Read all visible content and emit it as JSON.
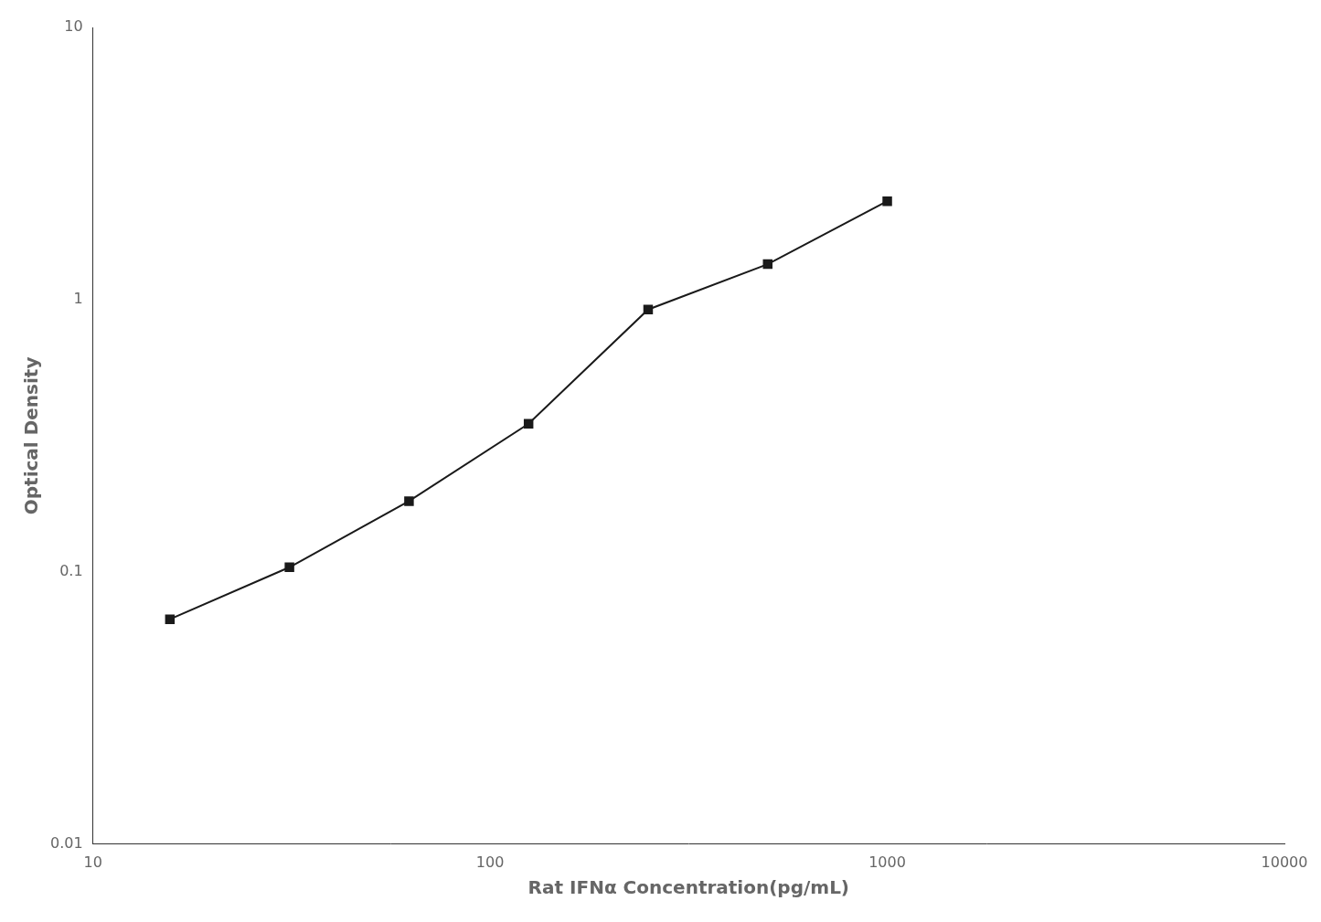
{
  "chart_data": {
    "type": "line",
    "x": [
      15.625,
      31.25,
      62.5,
      125,
      250,
      500,
      1000
    ],
    "values": [
      0.067,
      0.104,
      0.182,
      0.35,
      0.92,
      1.35,
      2.3
    ],
    "xlabel": "Rat IFNα Concentration(pg/mL)",
    "ylabel": "Optical Density",
    "xlim": [
      10,
      10000
    ],
    "ylim": [
      0.01,
      10
    ],
    "xticks": [
      10,
      100,
      1000,
      10000
    ],
    "yticks": [
      0.01,
      0.1,
      1,
      10
    ],
    "log": true,
    "grid": false,
    "color": "#1a1a1a",
    "marker": "square",
    "line_style": "solid"
  }
}
